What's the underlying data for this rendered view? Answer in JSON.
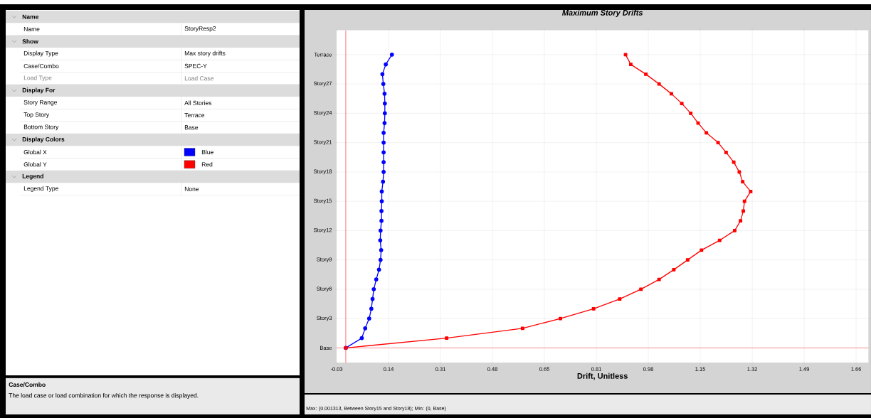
{
  "chart_data": [
    {
      "type": "other",
      "annotations": [
        "Name",
        "Name",
        "StoryResp2",
        "Show",
        "Display Type",
        "Max story drifts",
        "Case/Combo",
        "SPEC-Y",
        "Load Type",
        "Load Case",
        "Display For",
        "Story Range",
        "All Stories",
        "Top Story",
        "Terrace",
        "Bottom Story",
        "Base",
        "Display Colors",
        "Global X",
        "Blue",
        "Global Y",
        "Red",
        "Legend",
        "Legend Type",
        "None",
        "Case/Combo",
        "The load case or load combination for which the response is displayed."
      ],
      "colors": [
        "#0000ff",
        "#ff0000"
      ]
    },
    {
      "type": "line",
      "orientation": "horizontal",
      "title": "Maximum Story Drifts",
      "xlabel": "Drift, Unitless",
      "categories": [
        "Terrace",
        null,
        null,
        "Story27",
        null,
        null,
        "Story24",
        null,
        null,
        "Story21",
        null,
        null,
        "Story18",
        null,
        null,
        "Story15",
        null,
        null,
        "Story12",
        null,
        null,
        "Story9",
        null,
        null,
        "Story6",
        null,
        null,
        "Story3",
        null,
        null,
        "Base"
      ],
      "series": [
        {
          "color": "#0000ff",
          "marker": "circle",
          "values": [
            0.15,
            0.13,
            0.119,
            0.122,
            0.126,
            0.127,
            0.127,
            0.126,
            0.123,
            0.123,
            0.123,
            0.123,
            0.123,
            0.121,
            0.117,
            0.117,
            0.116,
            0.116,
            0.113,
            0.112,
            0.115,
            0.113,
            0.108,
            0.099,
            0.091,
            0.087,
            0.083,
            0.076,
            0.063,
            0.052,
            0
          ]
        },
        {
          "color": "#ff0000",
          "marker": "square",
          "values": [
            0.91,
            0.927,
            0.976,
            1.019,
            1.059,
            1.093,
            1.122,
            1.146,
            1.173,
            1.211,
            1.237,
            1.262,
            1.28,
            1.291,
            1.317,
            1.297,
            1.293,
            1.284,
            1.265,
            1.216,
            1.157,
            1.112,
            1.067,
            1.019,
            0.96,
            0.891,
            0.806,
            0.698,
            0.575,
            0.328,
            0
          ]
        }
      ],
      "xlim": [
        -0.03,
        1.7
      ],
      "xticks": [
        -0.03,
        {
          "value": 0.139,
          "label": "0.14"
        },
        {
          "value": 0.308,
          "label": "0.31"
        },
        {
          "value": 0.477,
          "label": "0.48"
        },
        {
          "value": 0.646,
          "label": "0.65"
        },
        {
          "value": 0.815,
          "label": "0.81"
        },
        {
          "value": 0.984,
          "label": "0.98"
        },
        {
          "value": 1.153,
          "label": "1.15"
        },
        {
          "value": 1.322,
          "label": "1.32"
        },
        {
          "value": 1.491,
          "label": "1.49"
        },
        1.66
      ],
      "grid": true,
      "ref_lines": [
        {
          "axis": "x",
          "value": 0,
          "color": "#ff0000"
        },
        {
          "axis": "y",
          "value": "Base",
          "color": "#ff0000"
        }
      ],
      "annotations": [
        "Max: (0.001313, Between Story15 and Story18);   Min: (0, Base)"
      ]
    }
  ]
}
